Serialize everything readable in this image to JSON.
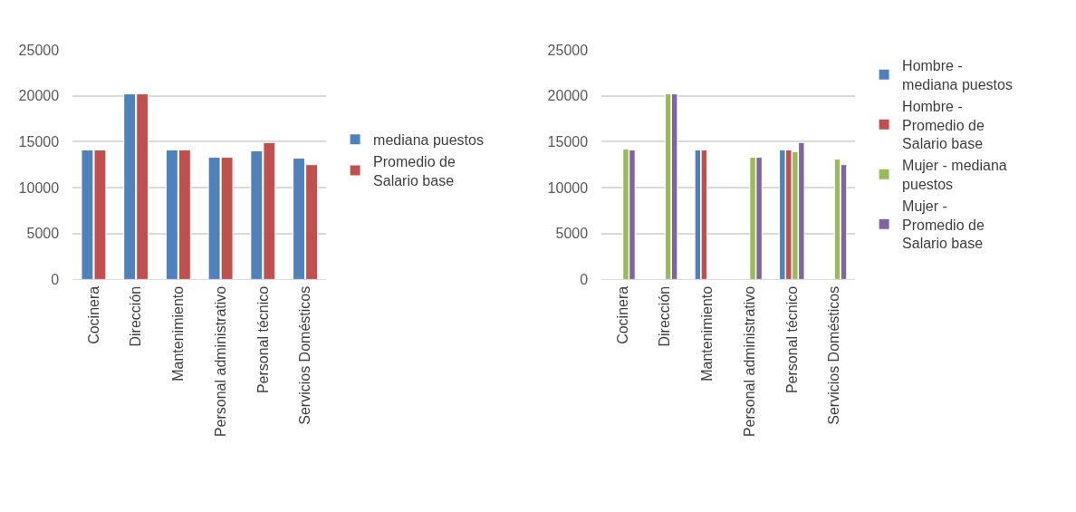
{
  "chart_data": [
    {
      "type": "bar",
      "categories": [
        "Cocinera",
        "Dirección",
        "Mantenimiento",
        "Personal administrativo",
        "Personal técnico",
        "Servicios Domésticos"
      ],
      "series": [
        {
          "name": "mediana puestos",
          "color": "#4f81bd",
          "values": [
            14100,
            20200,
            14100,
            13300,
            14000,
            13200
          ]
        },
        {
          "name": "Promedio de Salario base",
          "color": "#c0504d",
          "values": [
            14100,
            20200,
            14100,
            13300,
            14900,
            12500
          ]
        }
      ],
      "ylim": [
        0,
        25000
      ],
      "yticks": [
        0,
        5000,
        10000,
        15000,
        20000,
        25000
      ],
      "grid": "y",
      "legend": "right"
    },
    {
      "type": "bar",
      "categories": [
        "Cocinera",
        "Dirección",
        "Mantenimiento",
        "Personal administrativo",
        "Personal técnico",
        "Servicios Domésticos"
      ],
      "series": [
        {
          "name": "Hombre - mediana puestos",
          "color": "#4f81bd",
          "values": [
            null,
            null,
            14100,
            null,
            14100,
            null
          ]
        },
        {
          "name": "Hombre - Promedio de Salario base",
          "color": "#c0504d",
          "values": [
            null,
            null,
            14100,
            null,
            14100,
            null
          ]
        },
        {
          "name": "Mujer - mediana puestos",
          "color": "#9bbb59",
          "values": [
            14200,
            20200,
            null,
            13300,
            13900,
            13100
          ]
        },
        {
          "name": "Mujer - Promedio de Salario base",
          "color": "#8064a2",
          "values": [
            14100,
            20200,
            null,
            13300,
            14900,
            12500
          ]
        }
      ],
      "ylim": [
        0,
        25000
      ],
      "yticks": [
        0,
        5000,
        10000,
        15000,
        20000,
        25000
      ],
      "grid": "y",
      "legend": "right"
    }
  ]
}
